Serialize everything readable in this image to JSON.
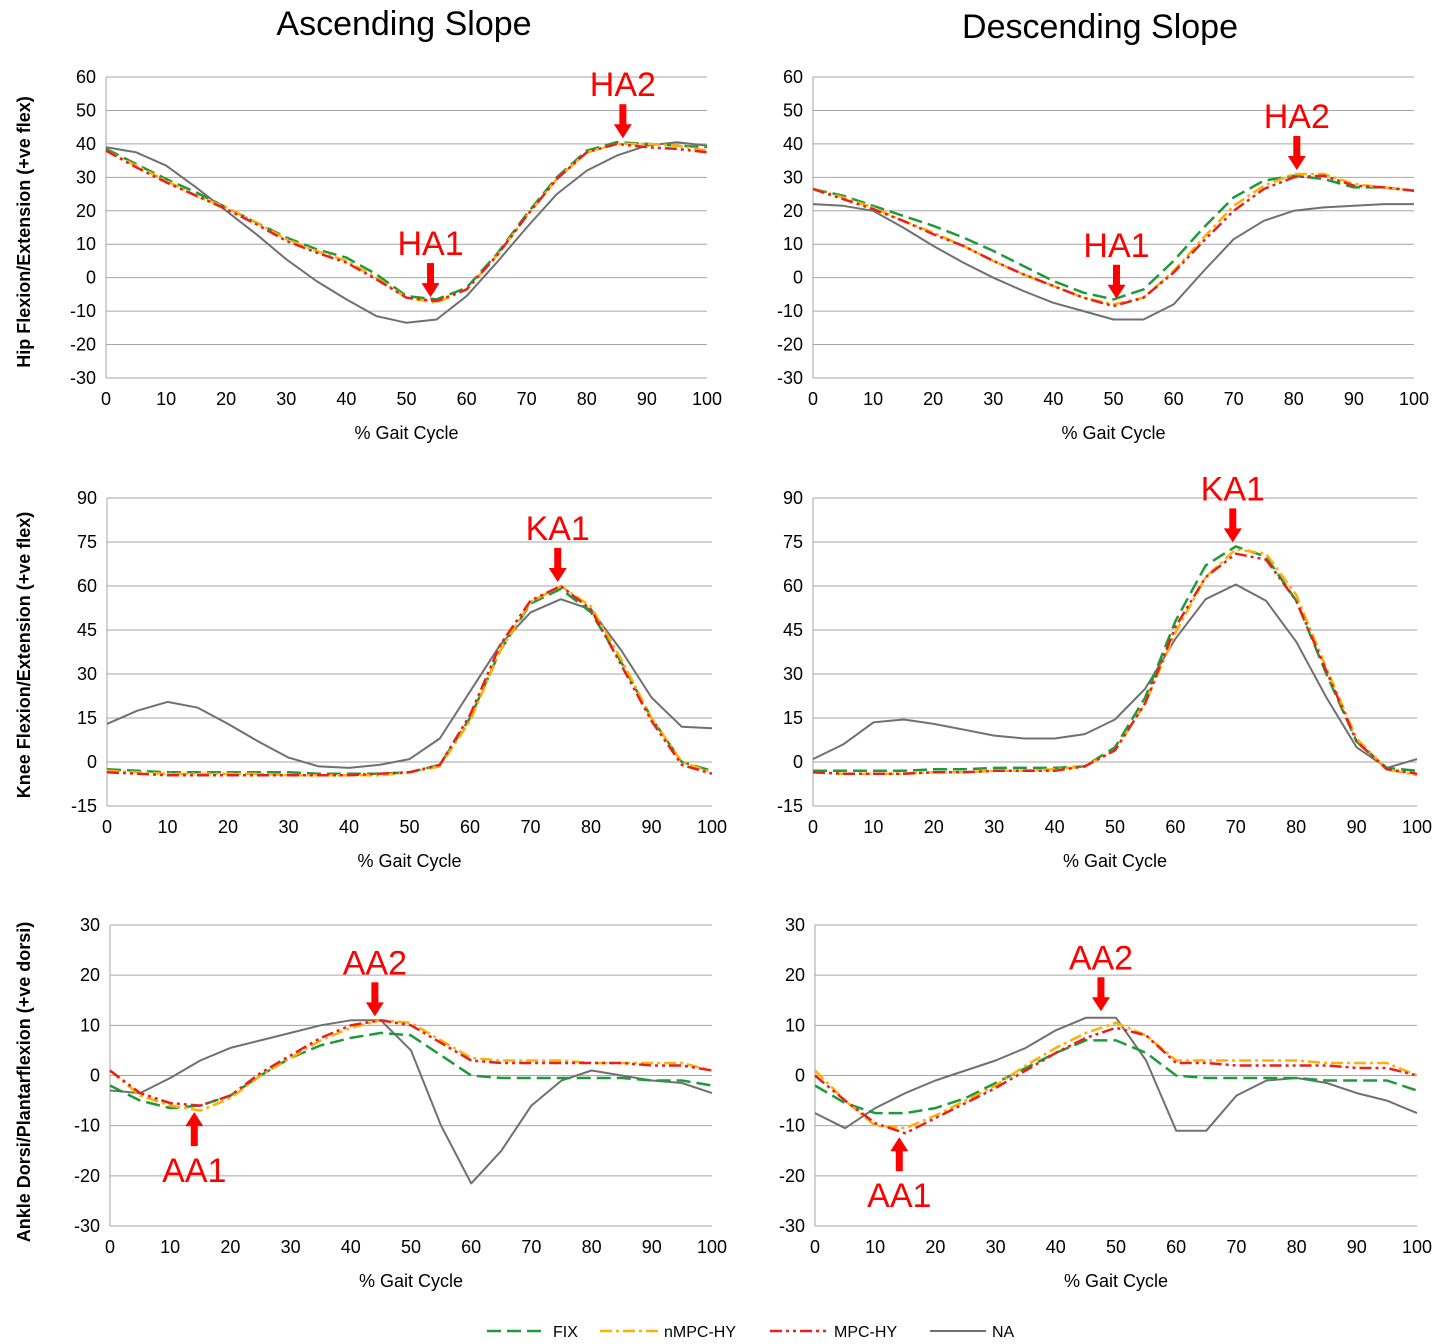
{
  "columns": [
    "Ascending Slope",
    "Descending Slope"
  ],
  "rows": [
    {
      "ylabel": "Hip Flexion/Extension (+ve flex)"
    },
    {
      "ylabel": "Knee Flexion/Extension (+ve flex)"
    },
    {
      "ylabel": "Ankle Dorsi/Plantarflexion (+ve dorsi)"
    }
  ],
  "legend": [
    {
      "name": "FIX",
      "color": "#1e9a3c",
      "dash": "14,6"
    },
    {
      "name": "nMPC-HY",
      "color": "#ffb000",
      "dash": "12,4,3,4"
    },
    {
      "name": "MPC-HY",
      "color": "#e8211c",
      "dash": "12,4,3,4,3,4"
    },
    {
      "name": "NA",
      "color": "#707070",
      "dash": ""
    }
  ],
  "annotation_color": "#ff0000",
  "chart_data": [
    {
      "type": "line",
      "id": "hip-ascending",
      "column": "Ascending Slope",
      "xlabel": "% Gait Cycle",
      "ylabel": "Hip Flexion/Extension (+ve flex)",
      "xlim": [
        0,
        100
      ],
      "ylim": [
        -30,
        60
      ],
      "xticks": [
        0,
        10,
        20,
        30,
        40,
        50,
        60,
        70,
        80,
        90,
        100
      ],
      "yticks": [
        -30,
        -20,
        -10,
        0,
        10,
        20,
        30,
        40,
        50,
        60
      ],
      "grid": "horizontal",
      "x": [
        0,
        5,
        10,
        15,
        20,
        25,
        30,
        35,
        40,
        45,
        50,
        55,
        60,
        65,
        70,
        75,
        80,
        85,
        90,
        95,
        100
      ],
      "series": [
        {
          "name": "FIX",
          "values": [
            38.5,
            34,
            29.5,
            25.5,
            21,
            16.5,
            12,
            8.5,
            6,
            1,
            -5.5,
            -6.5,
            -3,
            7,
            19,
            30,
            38,
            40.5,
            40,
            39.5,
            39
          ]
        },
        {
          "name": "nMPC-HY",
          "values": [
            38,
            33.5,
            29,
            24.5,
            21,
            16.5,
            11.5,
            8,
            5,
            0,
            -6,
            -7.5,
            -3.5,
            6.5,
            18.5,
            29.5,
            37.5,
            40,
            40,
            39.5,
            38
          ]
        },
        {
          "name": "MPC-HY",
          "values": [
            38,
            33,
            28.5,
            24.5,
            20.5,
            16,
            11,
            7.5,
            4.5,
            -0.5,
            -6,
            -7,
            -3.5,
            6.5,
            18.5,
            29.5,
            37.5,
            40,
            39,
            38.5,
            37.5
          ]
        },
        {
          "name": "NA",
          "values": [
            39,
            37.5,
            33.5,
            27,
            20,
            13,
            5.5,
            -1,
            -6.5,
            -11.5,
            -13.5,
            -12.5,
            -5.5,
            4.5,
            15,
            25,
            32,
            36.5,
            39.5,
            40.5,
            39.5
          ]
        }
      ],
      "annotations": [
        {
          "text": "HA1",
          "x": 54,
          "y": -7,
          "dir": "down"
        },
        {
          "text": "HA2",
          "x": 86,
          "y": 40.5,
          "dir": "down"
        }
      ]
    },
    {
      "type": "line",
      "id": "hip-descending",
      "column": "Descending Slope",
      "xlabel": "% Gait Cycle",
      "ylabel": "Hip Flexion/Extension (+ve flex)",
      "xlim": [
        0,
        100
      ],
      "ylim": [
        -30,
        60
      ],
      "xticks": [
        0,
        10,
        20,
        30,
        40,
        50,
        60,
        70,
        80,
        90,
        100
      ],
      "yticks": [
        -30,
        -20,
        -10,
        0,
        10,
        20,
        30,
        40,
        50,
        60
      ],
      "grid": "horizontal",
      "x": [
        0,
        5,
        10,
        15,
        20,
        25,
        30,
        35,
        40,
        45,
        50,
        55,
        60,
        65,
        70,
        75,
        80,
        85,
        90,
        95,
        100
      ],
      "series": [
        {
          "name": "FIX",
          "values": [
            26.5,
            24.5,
            21.5,
            18.5,
            15.5,
            12,
            8,
            3.5,
            -1,
            -4.5,
            -6.5,
            -3.5,
            5,
            15,
            24,
            29,
            30.5,
            29.5,
            27,
            27,
            26
          ]
        },
        {
          "name": "nMPC-HY",
          "values": [
            26.5,
            24,
            21,
            17,
            13.5,
            9.5,
            5,
            1,
            -2.5,
            -6,
            -8,
            -6,
            2,
            12,
            21.5,
            27.5,
            31,
            31,
            28,
            27,
            26
          ]
        },
        {
          "name": "MPC-HY",
          "values": [
            26.5,
            23.5,
            20.5,
            17,
            13,
            9.5,
            5,
            1,
            -2.5,
            -6,
            -8.5,
            -6,
            1.5,
            11,
            20,
            26.5,
            30,
            30.5,
            27.5,
            27,
            26
          ]
        },
        {
          "name": "NA",
          "values": [
            22,
            21.5,
            20,
            15,
            9.5,
            4.5,
            0,
            -4,
            -7.5,
            -10,
            -12.5,
            -12.5,
            -8,
            2,
            11.5,
            17,
            20,
            21,
            21.5,
            22,
            22
          ]
        }
      ],
      "annotations": [
        {
          "text": "HA1",
          "x": 50.5,
          "y": -7.5,
          "dir": "down"
        },
        {
          "text": "HA2",
          "x": 80.5,
          "y": 31,
          "dir": "down"
        }
      ]
    },
    {
      "type": "line",
      "id": "knee-ascending",
      "column": "Ascending Slope",
      "xlabel": "% Gait Cycle",
      "ylabel": "Knee Flexion/Extension (+ve flex)",
      "xlim": [
        0,
        100
      ],
      "ylim": [
        -15,
        90
      ],
      "xticks": [
        0,
        10,
        20,
        30,
        40,
        50,
        60,
        70,
        80,
        90,
        100
      ],
      "yticks": [
        -15,
        0,
        15,
        30,
        45,
        60,
        75,
        90
      ],
      "grid": "horizontal",
      "x": [
        0,
        5,
        10,
        15,
        20,
        25,
        30,
        35,
        40,
        45,
        50,
        55,
        60,
        65,
        70,
        75,
        80,
        85,
        90,
        95,
        100
      ],
      "series": [
        {
          "name": "FIX",
          "values": [
            -2.5,
            -3,
            -3.5,
            -3.5,
            -3.5,
            -3.5,
            -3.5,
            -4,
            -4,
            -4,
            -3.5,
            -1,
            15,
            38,
            54,
            59,
            51,
            34,
            15,
            0,
            -3
          ]
        },
        {
          "name": "nMPC-HY",
          "values": [
            -3,
            -3.5,
            -4,
            -4,
            -4,
            -4,
            -4.5,
            -4.5,
            -4.5,
            -4.5,
            -3.5,
            -1.5,
            14,
            38,
            54.5,
            60,
            53,
            35,
            15,
            0,
            -3.5
          ]
        },
        {
          "name": "MPC-HY",
          "values": [
            -3.5,
            -4,
            -4.5,
            -4.5,
            -4.5,
            -4.5,
            -4.5,
            -4.5,
            -4.5,
            -4,
            -3.5,
            -1,
            16,
            40,
            55,
            60,
            52,
            33,
            14,
            -1,
            -4
          ]
        },
        {
          "name": "NA",
          "values": [
            13,
            17.5,
            20.5,
            18.5,
            13,
            7,
            1.5,
            -1.5,
            -2,
            -1,
            1,
            8,
            24,
            40,
            51,
            55.5,
            52,
            38,
            22,
            12,
            11.5
          ]
        }
      ],
      "annotations": [
        {
          "text": "KA1",
          "x": 74.5,
          "y": 60,
          "dir": "down"
        }
      ]
    },
    {
      "type": "line",
      "id": "knee-descending",
      "column": "Descending Slope",
      "xlabel": "% Gait Cycle",
      "ylabel": "Knee Flexion/Extension (+ve flex)",
      "xlim": [
        0,
        100
      ],
      "ylim": [
        -15,
        90
      ],
      "xticks": [
        0,
        10,
        20,
        30,
        40,
        50,
        60,
        70,
        80,
        90,
        100
      ],
      "yticks": [
        -15,
        0,
        15,
        30,
        45,
        60,
        75,
        90
      ],
      "grid": "horizontal",
      "x": [
        0,
        5,
        10,
        15,
        20,
        25,
        30,
        35,
        40,
        45,
        50,
        55,
        60,
        65,
        70,
        75,
        80,
        85,
        90,
        95,
        100
      ],
      "series": [
        {
          "name": "FIX",
          "values": [
            -3,
            -3,
            -3,
            -3,
            -2.5,
            -2.5,
            -2,
            -2,
            -2,
            -1.5,
            5,
            22,
            48,
            67,
            73.5,
            70,
            55,
            30,
            7,
            -2,
            -3
          ]
        },
        {
          "name": "nMPC-HY",
          "values": [
            -3.5,
            -4,
            -4,
            -4,
            -3.5,
            -3.5,
            -3,
            -3,
            -2.5,
            -1.5,
            4,
            20,
            44,
            63,
            72.5,
            71,
            57,
            32,
            8,
            -2.5,
            -4.5
          ]
        },
        {
          "name": "MPC-HY",
          "values": [
            -3.5,
            -4,
            -4,
            -4,
            -3.5,
            -3.5,
            -3,
            -3,
            -3,
            -1.5,
            4,
            20,
            46,
            63,
            71,
            69,
            55,
            31,
            7,
            -2.5,
            -4
          ]
        },
        {
          "name": "NA",
          "values": [
            1,
            6,
            13.5,
            14.5,
            13,
            11,
            9,
            8,
            8,
            9.5,
            14.5,
            25,
            42,
            55.5,
            60.5,
            55,
            41,
            22,
            5,
            -2,
            1
          ]
        }
      ],
      "annotations": [
        {
          "text": "KA1",
          "x": 69.5,
          "y": 73.5,
          "dir": "down"
        }
      ]
    },
    {
      "type": "line",
      "id": "ankle-ascending",
      "column": "Ascending Slope",
      "xlabel": "% Gait Cycle",
      "ylabel": "Ankle Dorsi/Plantarflexion (+ve dorsi)",
      "xlim": [
        0,
        100
      ],
      "ylim": [
        -30,
        30
      ],
      "xticks": [
        0,
        10,
        20,
        30,
        40,
        50,
        60,
        70,
        80,
        90,
        100
      ],
      "yticks": [
        -30,
        -20,
        -10,
        0,
        10,
        20,
        30
      ],
      "grid": "horizontal",
      "x": [
        0,
        5,
        10,
        15,
        20,
        25,
        30,
        35,
        40,
        45,
        50,
        55,
        60,
        65,
        70,
        75,
        80,
        85,
        90,
        95,
        100
      ],
      "series": [
        {
          "name": "FIX",
          "values": [
            -2,
            -5,
            -6.5,
            -6,
            -4,
            0,
            3.5,
            6,
            7.5,
            8.5,
            8,
            4,
            0,
            -0.5,
            -0.5,
            -0.5,
            -0.5,
            -0.5,
            -1,
            -1,
            -2
          ]
        },
        {
          "name": "nMPC-HY",
          "values": [
            1,
            -4,
            -6,
            -7,
            -4.5,
            0,
            3.5,
            7,
            9.5,
            11,
            10.5,
            7,
            3.5,
            3,
            3,
            3,
            2.5,
            2.5,
            2.5,
            2.5,
            1
          ]
        },
        {
          "name": "MPC-HY",
          "values": [
            1,
            -3.5,
            -5.5,
            -6,
            -4,
            0.5,
            4,
            7.5,
            10,
            11,
            10,
            6.5,
            3,
            2.5,
            2.5,
            2.5,
            2.5,
            2.5,
            2,
            2,
            1
          ]
        },
        {
          "name": "NA",
          "values": [
            -3,
            -3.5,
            -0.5,
            3,
            5.5,
            7,
            8.5,
            10,
            11,
            11,
            5,
            -10,
            -21.5,
            -15,
            -6,
            -1,
            1,
            0,
            -1,
            -1.5,
            -3.5
          ]
        }
      ],
      "annotations": [
        {
          "text": "AA1",
          "x": 14,
          "y": -6.5,
          "dir": "up"
        },
        {
          "text": "AA2",
          "x": 44,
          "y": 11,
          "dir": "down"
        }
      ]
    },
    {
      "type": "line",
      "id": "ankle-descending",
      "column": "Descending Slope",
      "xlabel": "% Gait Cycle",
      "ylabel": "Ankle Dorsi/Plantarflexion (+ve dorsi)",
      "xlim": [
        0,
        100
      ],
      "ylim": [
        -30,
        30
      ],
      "xticks": [
        0,
        10,
        20,
        30,
        40,
        50,
        60,
        70,
        80,
        90,
        100
      ],
      "yticks": [
        -30,
        -20,
        -10,
        0,
        10,
        20,
        30
      ],
      "grid": "horizontal",
      "x": [
        0,
        5,
        10,
        15,
        20,
        25,
        30,
        35,
        40,
        45,
        50,
        55,
        60,
        65,
        70,
        75,
        80,
        85,
        90,
        95,
        100
      ],
      "series": [
        {
          "name": "FIX",
          "values": [
            -2,
            -5.5,
            -7.5,
            -7.5,
            -6.5,
            -4.5,
            -1.5,
            1.5,
            4.5,
            7,
            7,
            4.5,
            0,
            -0.5,
            -0.5,
            -0.5,
            -0.5,
            -1,
            -1,
            -1,
            -3
          ]
        },
        {
          "name": "nMPC-HY",
          "values": [
            1,
            -5,
            -10,
            -10.5,
            -8,
            -5,
            -2,
            2,
            5.5,
            8.5,
            10.5,
            8,
            3,
            3,
            3,
            3,
            3,
            2.5,
            2.5,
            2.5,
            0
          ]
        },
        {
          "name": "MPC-HY",
          "values": [
            0,
            -5,
            -9.5,
            -11.5,
            -8.5,
            -5.5,
            -2.5,
            1,
            4.5,
            7.5,
            9.5,
            8,
            2.5,
            2.5,
            2,
            2,
            2,
            2,
            1.5,
            1.5,
            0
          ]
        },
        {
          "name": "NA",
          "values": [
            -7.5,
            -10.5,
            -6.5,
            -3.5,
            -1,
            1,
            3,
            5.5,
            9,
            11.5,
            11.5,
            3,
            -11,
            -11,
            -4,
            -1,
            -0.5,
            -1.5,
            -3.5,
            -5,
            -7.5
          ]
        }
      ],
      "annotations": [
        {
          "text": "AA1",
          "x": 14,
          "y": -11.5,
          "dir": "up"
        },
        {
          "text": "AA2",
          "x": 47.5,
          "y": 12,
          "dir": "down"
        }
      ]
    }
  ]
}
